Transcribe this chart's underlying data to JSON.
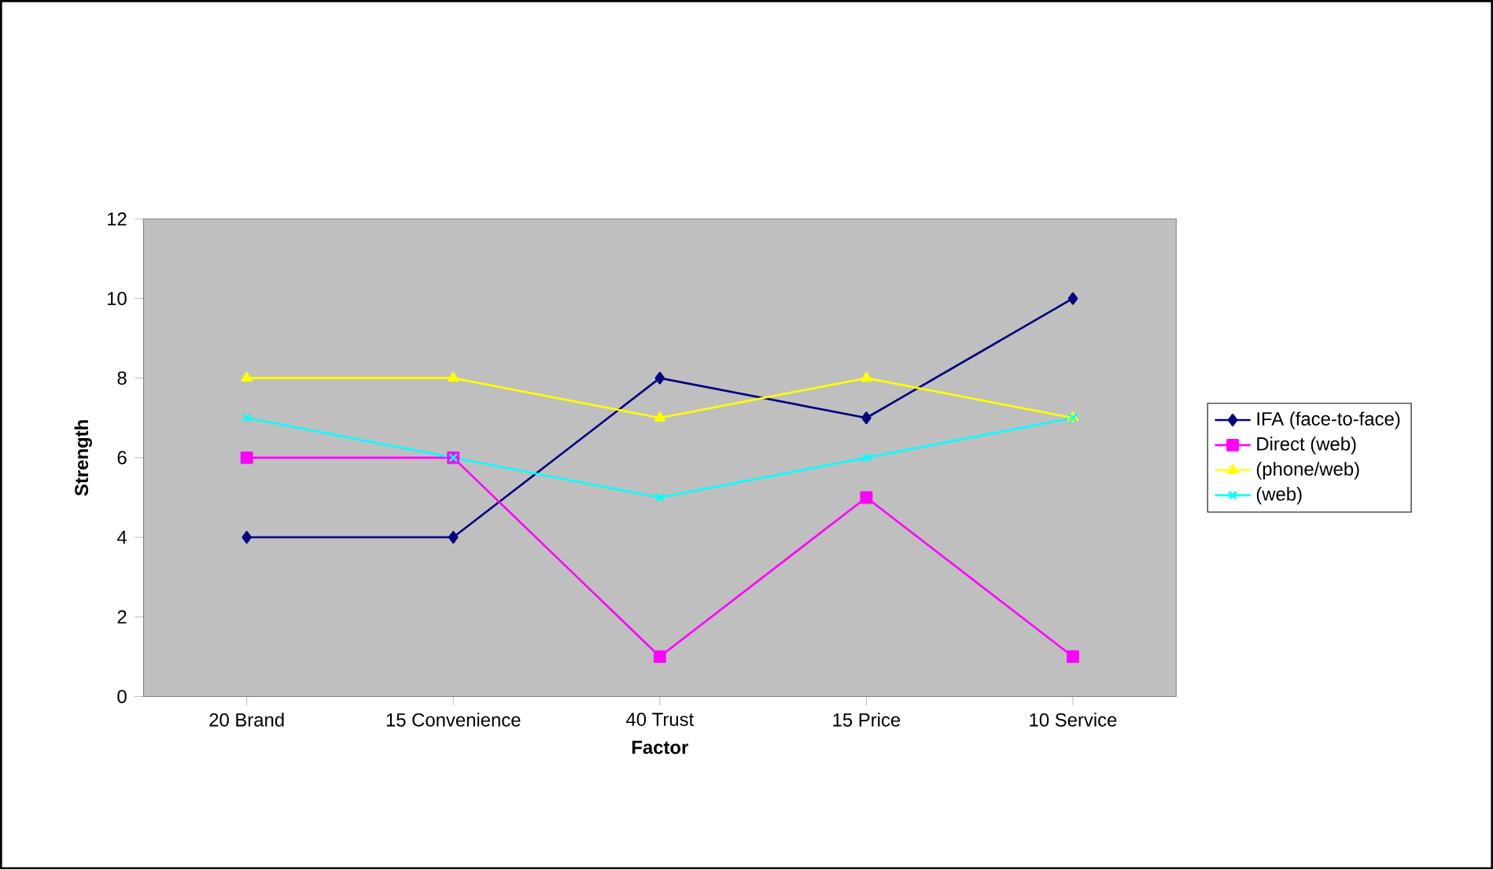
{
  "chart_data": {
    "type": "line",
    "xlabel": "Factor",
    "ylabel": "Strength",
    "categories": [
      "20 Brand",
      "15 Convenience",
      "40 Trust",
      "15 Price",
      "10 Service"
    ],
    "series": [
      {
        "name": "IFA (face-to-face)",
        "color": "#000080",
        "marker": "diamond",
        "values": [
          4,
          4,
          8,
          7,
          10
        ]
      },
      {
        "name": "Direct (web)",
        "color": "#ff00ff",
        "marker": "square",
        "values": [
          6,
          6,
          1,
          5,
          1
        ]
      },
      {
        "name": "(phone/web)",
        "color": "#ffff00",
        "marker": "triangle",
        "values": [
          8,
          8,
          7,
          8,
          7
        ]
      },
      {
        "name": "(web)",
        "color": "#00ffff",
        "marker": "cross",
        "values": [
          7,
          6,
          5,
          6,
          7
        ]
      }
    ],
    "ylim": [
      0,
      12
    ],
    "yticks": [
      0,
      2,
      4,
      6,
      8,
      10,
      12
    ],
    "grid": false,
    "legend": "right"
  }
}
